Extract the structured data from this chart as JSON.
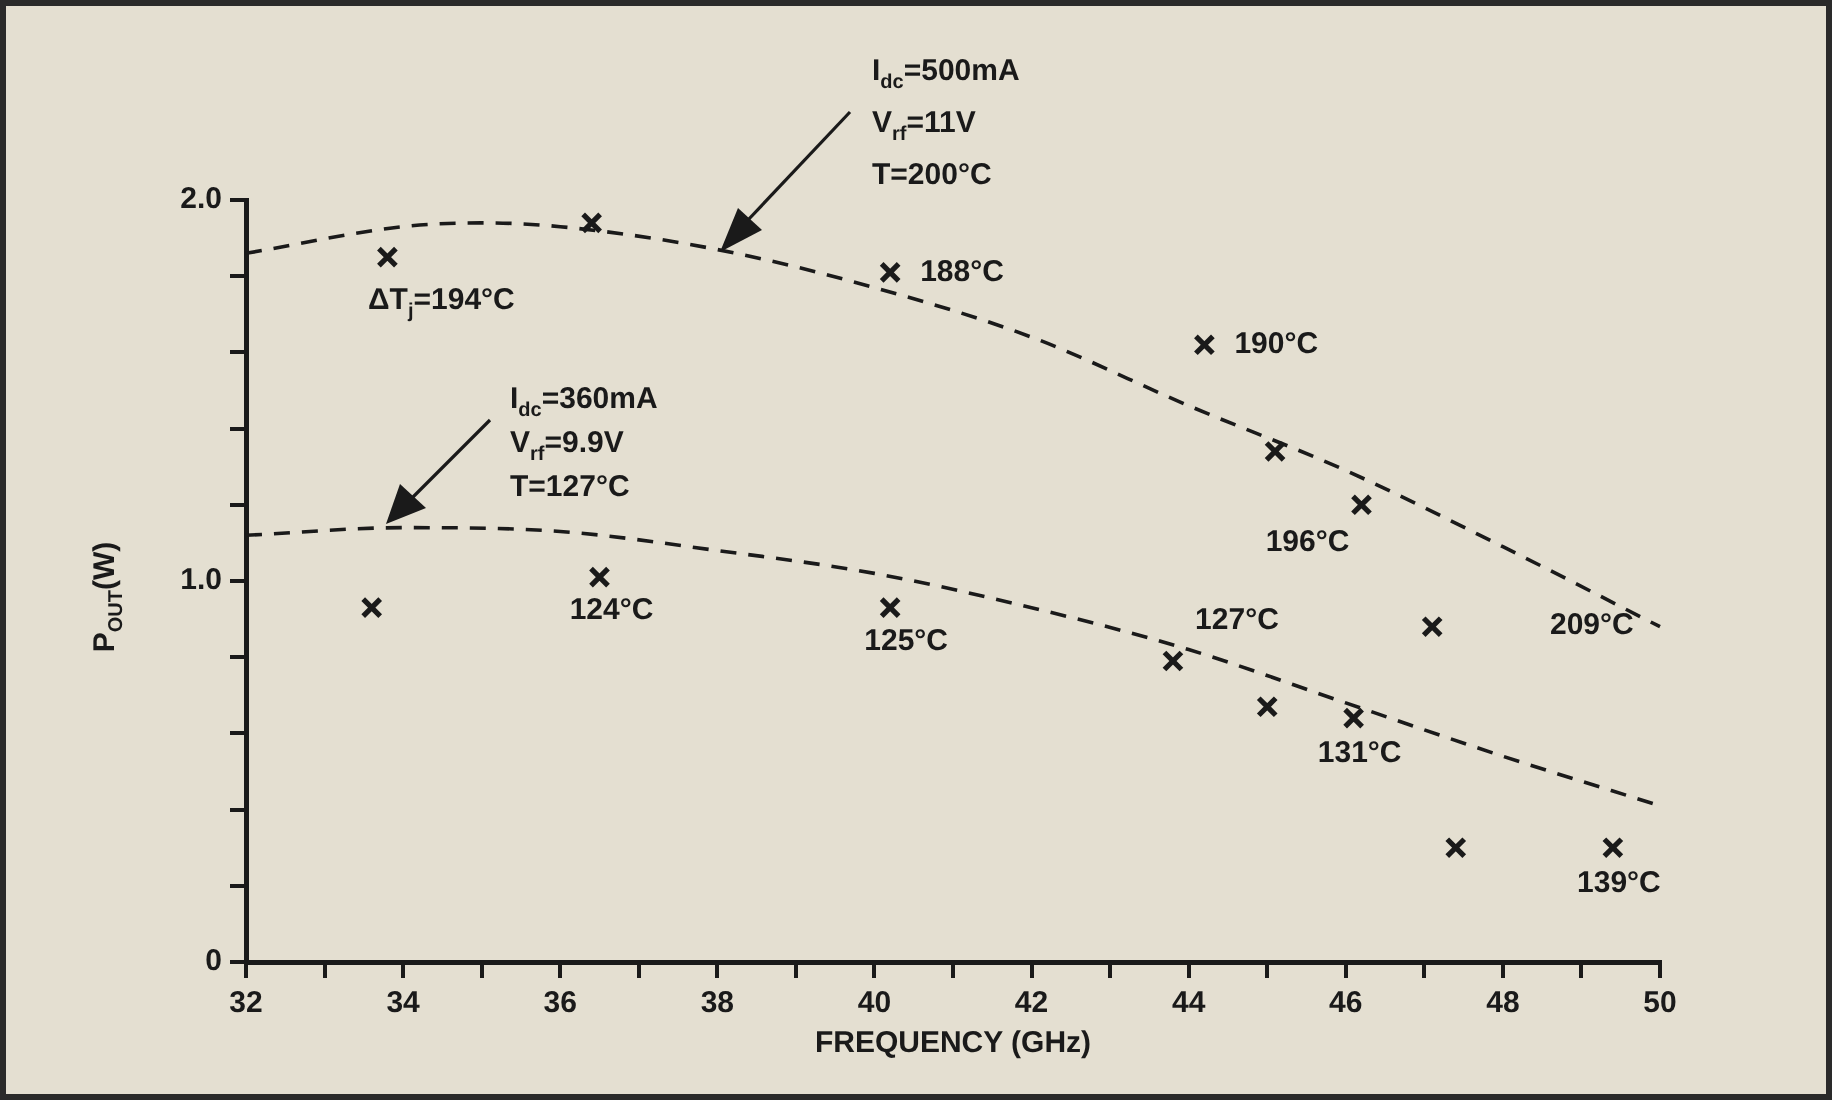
{
  "chart_data": {
    "type": "scatter",
    "xlabel": "FREQUENCY (GHz)",
    "ylabel": "P$_{OUT}$(W)",
    "xlim": [
      32,
      50
    ],
    "xticks": [
      32,
      {
        "value": 33,
        "label": null
      },
      34,
      {
        "value": 35,
        "label": null
      },
      36,
      {
        "value": 37,
        "label": null
      },
      38,
      {
        "value": 39,
        "label": null
      },
      40,
      {
        "value": 41,
        "label": null
      },
      42,
      {
        "value": 43,
        "label": null
      },
      44,
      {
        "value": 45,
        "label": null
      },
      46,
      {
        "value": 47,
        "label": null
      },
      48,
      {
        "value": 49,
        "label": null
      },
      50
    ],
    "ylim": [
      0,
      2
    ],
    "yticks": [
      0,
      {
        "value": 0.2,
        "label": null
      },
      {
        "value": 0.4,
        "label": null
      },
      {
        "value": 0.6,
        "label": null
      },
      {
        "value": 0.8,
        "label": null
      },
      {
        "value": 1,
        "label": "1.0"
      },
      {
        "value": 1.2,
        "label": null
      },
      {
        "value": 1.4,
        "label": null
      },
      {
        "value": 1.6,
        "label": null
      },
      {
        "value": 1.8,
        "label": null
      },
      {
        "value": 2,
        "label": "2.0"
      }
    ],
    "marker": "cross",
    "series": [
      {
        "type": "scatter",
        "color": "#1a1a1a",
        "x": [
          33.8,
          36.4,
          40.2,
          44.2,
          45.1,
          46.2,
          47.1
        ],
        "values": [
          1.85,
          1.94,
          1.81,
          1.62,
          1.34,
          1.2,
          0.88
        ]
      },
      {
        "type": "scatter",
        "color": "#1a1a1a",
        "x": [
          33.6,
          36.5,
          40.2,
          43.8,
          45.0,
          46.1,
          47.4,
          49.4
        ],
        "values": [
          0.93,
          1.01,
          0.93,
          0.79,
          0.67,
          0.64,
          0.3,
          0.3
        ]
      },
      {
        "type": "line",
        "color": "#1a1a1a",
        "line_style": "dashed",
        "marker": "none",
        "x": [
          32,
          34,
          35,
          36,
          38,
          40,
          42,
          44,
          46,
          48,
          50
        ],
        "values": [
          1.86,
          1.93,
          1.94,
          1.93,
          1.87,
          1.77,
          1.64,
          1.46,
          1.29,
          1.09,
          0.88
        ]
      },
      {
        "type": "line",
        "color": "#1a1a1a",
        "line_style": "dashed",
        "marker": "none",
        "x": [
          32,
          34,
          36,
          38,
          40,
          42,
          44,
          46,
          48,
          50
        ],
        "values": [
          1.12,
          1.14,
          1.13,
          1.08,
          1.02,
          0.93,
          0.82,
          0.68,
          0.54,
          0.41
        ]
      }
    ],
    "annotations": [
      "I$_{dc}$=500mA\nV$_{rf}$=11V\nT=200°C",
      "I$_{dc}$=360mA\nV$_{rf}$=9.9V\nT=127°C",
      {
        "text": "ΔT$_{j}$=194°C",
        "x": 33.8,
        "y": 1.85
      },
      {
        "text": "188°C",
        "x": 40.2,
        "y": 1.81
      },
      {
        "text": "190°C",
        "x": 44.2,
        "y": 1.62
      },
      {
        "text": "196°C",
        "x": 46.2,
        "y": 1.2
      },
      "209°C",
      {
        "text": "124°C",
        "x": 36.5,
        "y": 1.01
      },
      {
        "text": "125°C",
        "x": 40.2,
        "y": 0.93
      },
      {
        "text": "127°C",
        "x": 43.8,
        "y": 0.79
      },
      {
        "text": "131°C",
        "x": 46.1,
        "y": 0.64
      },
      {
        "text": "139°C",
        "x": 49.4,
        "y": 0.3
      }
    ]
  }
}
